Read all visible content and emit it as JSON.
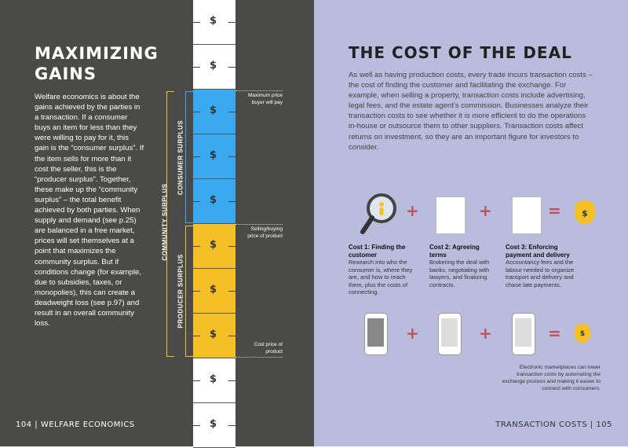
{
  "left_page": {
    "title": "MAXIMIZING GAINS",
    "body": "Welfare economics is about the gains achieved by the parties in a transaction. If a consumer buys an item for less than they were willing to pay for it, this gain is the “consumer surplus”. If the item sells for more than it cost the seller, this is the “producer surplus”. Together, these make up the “community surplus” – the total benefit achieved by both parties. When supply and demand (see p.25) are balanced in a free market, prices will set themselves at a point that maximizes the community surplus. But if conditions change (for example, due to subsidies, taxes, or monopolies), this can create a deadweight loss (see p.97) and result in an overall community loss.",
    "footer": "104 | WELFARE ECONOMICS",
    "diagram": {
      "symbol": "$",
      "community_label": "COMMUNITY SURPLUS",
      "consumer_label": "CONSUMER SURPLUS",
      "producer_label": "PRODUCER SURPLUS",
      "max_price_note": "Maximum price buyer will pay",
      "selling_price_note": "Selling/buying price of product",
      "cost_price_note": "Cost price of product"
    }
  },
  "right_page": {
    "title": "THE COST OF THE DEAL",
    "body": "As well as having production costs, every trade incurs transaction costs – the cost of finding the customer and facilitating the exchange. For example, when selling a property, transaction costs include advertising, legal fees, and the estate agent’s commission. Businesses analyze their transaction costs to see whether it is more efficient to do the operations in-house or outsource them to other suppliers. Transaction costs affect returns on investment, so they are an important figure for investors to consider.",
    "costs": [
      {
        "title": "Cost 1: Finding the customer",
        "text": "Research into who the consumer is, where they are, and how to reach them, plus the costs of connecting."
      },
      {
        "title": "Cost 2: Agreeing terms",
        "text": "Brokering the deal with banks, negotiating with lawyers, and finalizing contracts."
      },
      {
        "title": "Cost 3: Enforcing payment and delivery",
        "text": "Accountancy fees and the labour needed to organize transport and delivery and chase late payments."
      }
    ],
    "plus": "+",
    "equals": "=",
    "symbol": "$",
    "electronic_note": "Electronic marketplaces can lower transaction costs by automating the exchange process and making it easier to connect with consumers.",
    "footer": "TRANSACTION COSTS | 105"
  },
  "colors": {
    "left_bg": "#4a4a48",
    "right_bg": "#b9bcdc",
    "blue": "#3aa9f0",
    "yellow": "#f5c025",
    "red": "#c0505a"
  }
}
